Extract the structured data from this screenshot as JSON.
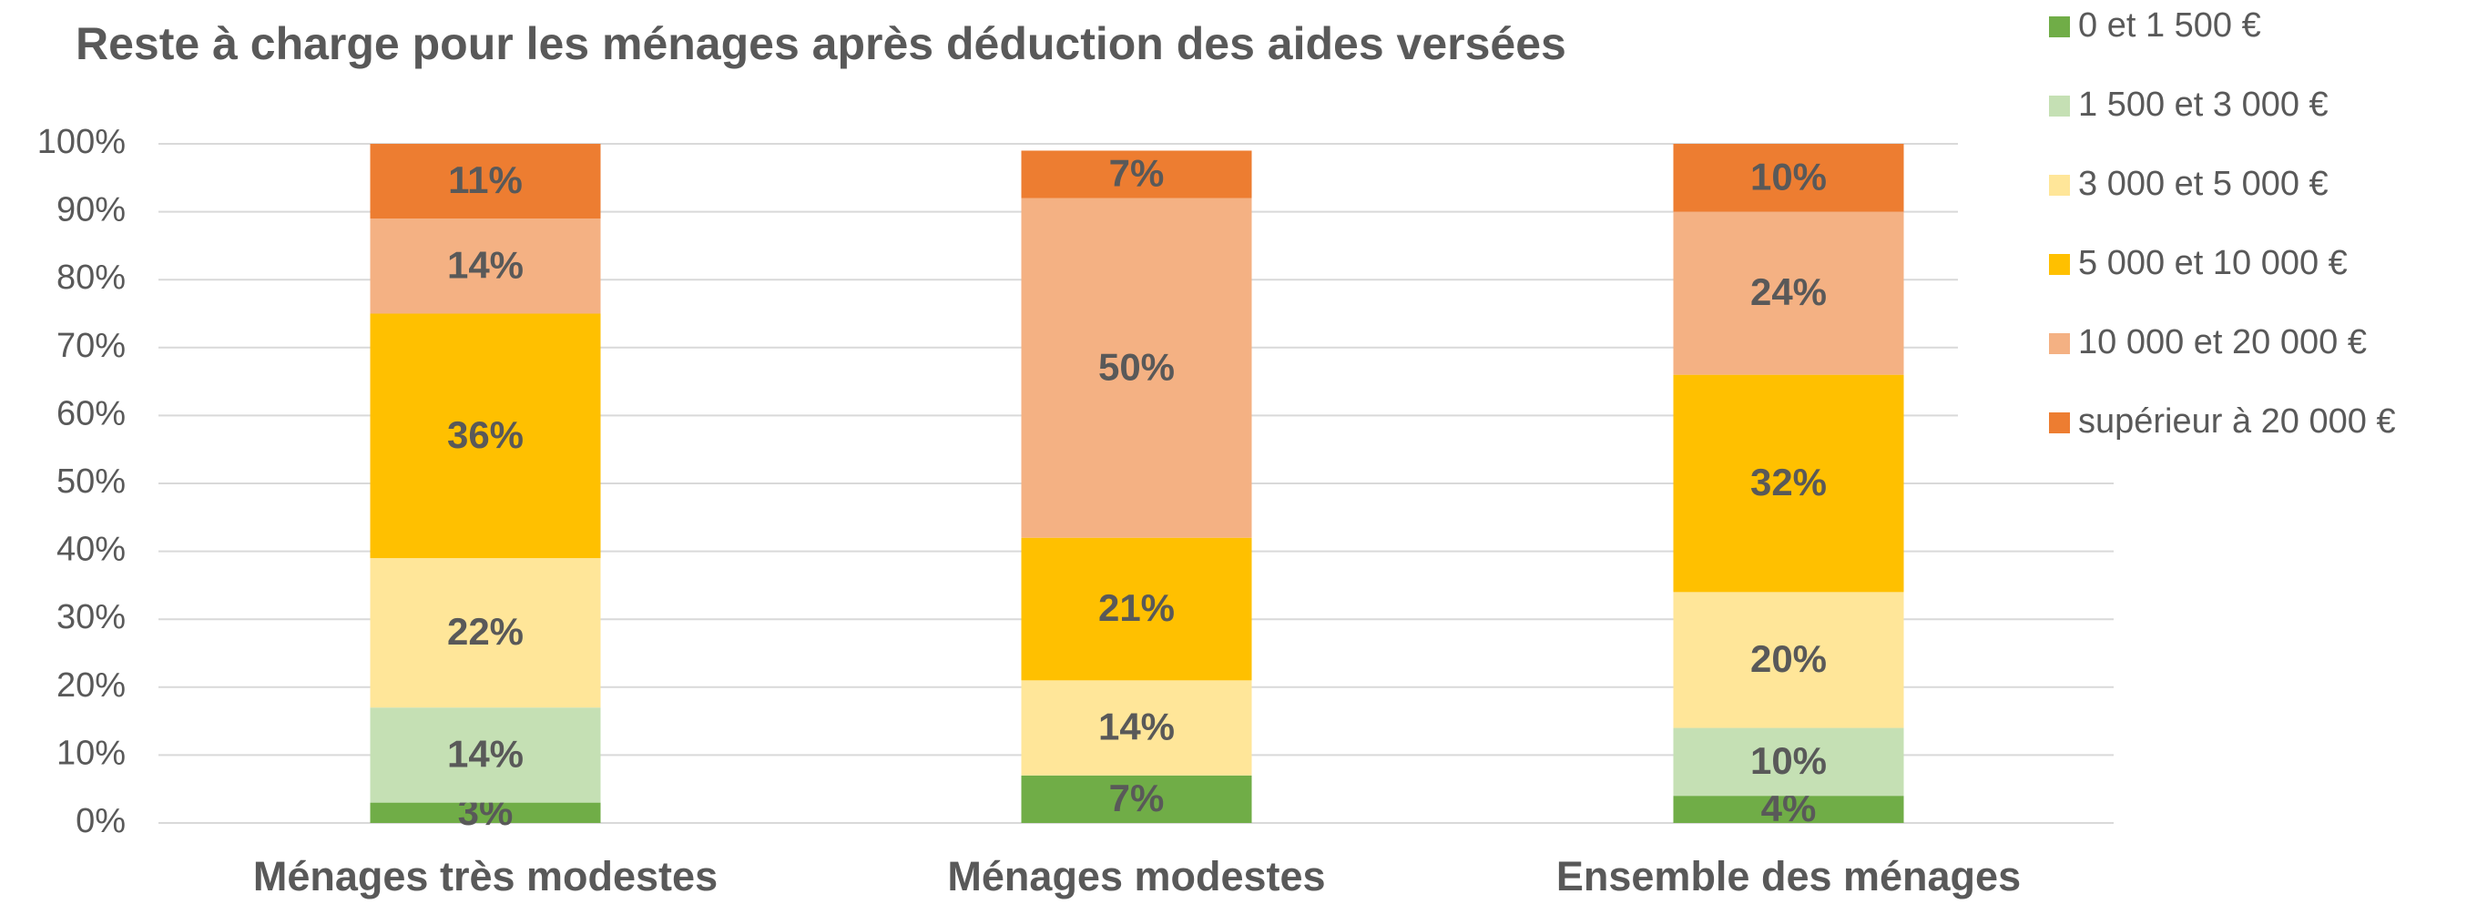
{
  "chart_data": {
    "type": "stacked_bar",
    "title": "Reste à charge pour les ménages après déduction des aides versées",
    "categories": [
      "Ménages très modestes",
      "Ménages modestes",
      "Ensemble des ménages"
    ],
    "series": [
      {
        "name": "0 et 1 500 €",
        "color": "#70ad47",
        "values": [
          3,
          7,
          4
        ],
        "value_labels": [
          "3%",
          "7%",
          "4%"
        ]
      },
      {
        "name": "1 500 et 3 000 €",
        "color": "#c5e0b4",
        "values": [
          14,
          null,
          10
        ],
        "value_labels": [
          "14%",
          null,
          "10%"
        ]
      },
      {
        "name": "3 000 et 5 000 €",
        "color": "#ffe699",
        "values": [
          22,
          14,
          20
        ],
        "value_labels": [
          "22%",
          "14%",
          "20%"
        ]
      },
      {
        "name": "5 000 et 10 000 €",
        "color": "#ffc000",
        "values": [
          36,
          21,
          32
        ],
        "value_labels": [
          "36%",
          "21%",
          "32%"
        ]
      },
      {
        "name": "10 000 et 20 000 €",
        "color": "#f4b183",
        "values": [
          14,
          50,
          24
        ],
        "value_labels": [
          "14%",
          "50%",
          "24%"
        ]
      },
      {
        "name": "supérieur à 20 000 €",
        "color": "#ed7d31",
        "values": [
          11,
          7,
          10
        ],
        "value_labels": [
          "11%",
          "7%",
          "10%"
        ]
      }
    ],
    "ylim": [
      0,
      100
    ],
    "yticks": [
      {
        "value": 0,
        "label": "0%"
      },
      {
        "value": 10,
        "label": "10%"
      },
      {
        "value": 20,
        "label": "20%"
      },
      {
        "value": 30,
        "label": "30%"
      },
      {
        "value": 40,
        "label": "40%"
      },
      {
        "value": 50,
        "label": "50%"
      },
      {
        "value": 60,
        "label": "60%"
      },
      {
        "value": 70,
        "label": "70%"
      },
      {
        "value": 80,
        "label": "80%"
      },
      {
        "value": 90,
        "label": "90%"
      },
      {
        "value": 100,
        "label": "100%"
      }
    ],
    "grid": true,
    "legend": "right"
  }
}
